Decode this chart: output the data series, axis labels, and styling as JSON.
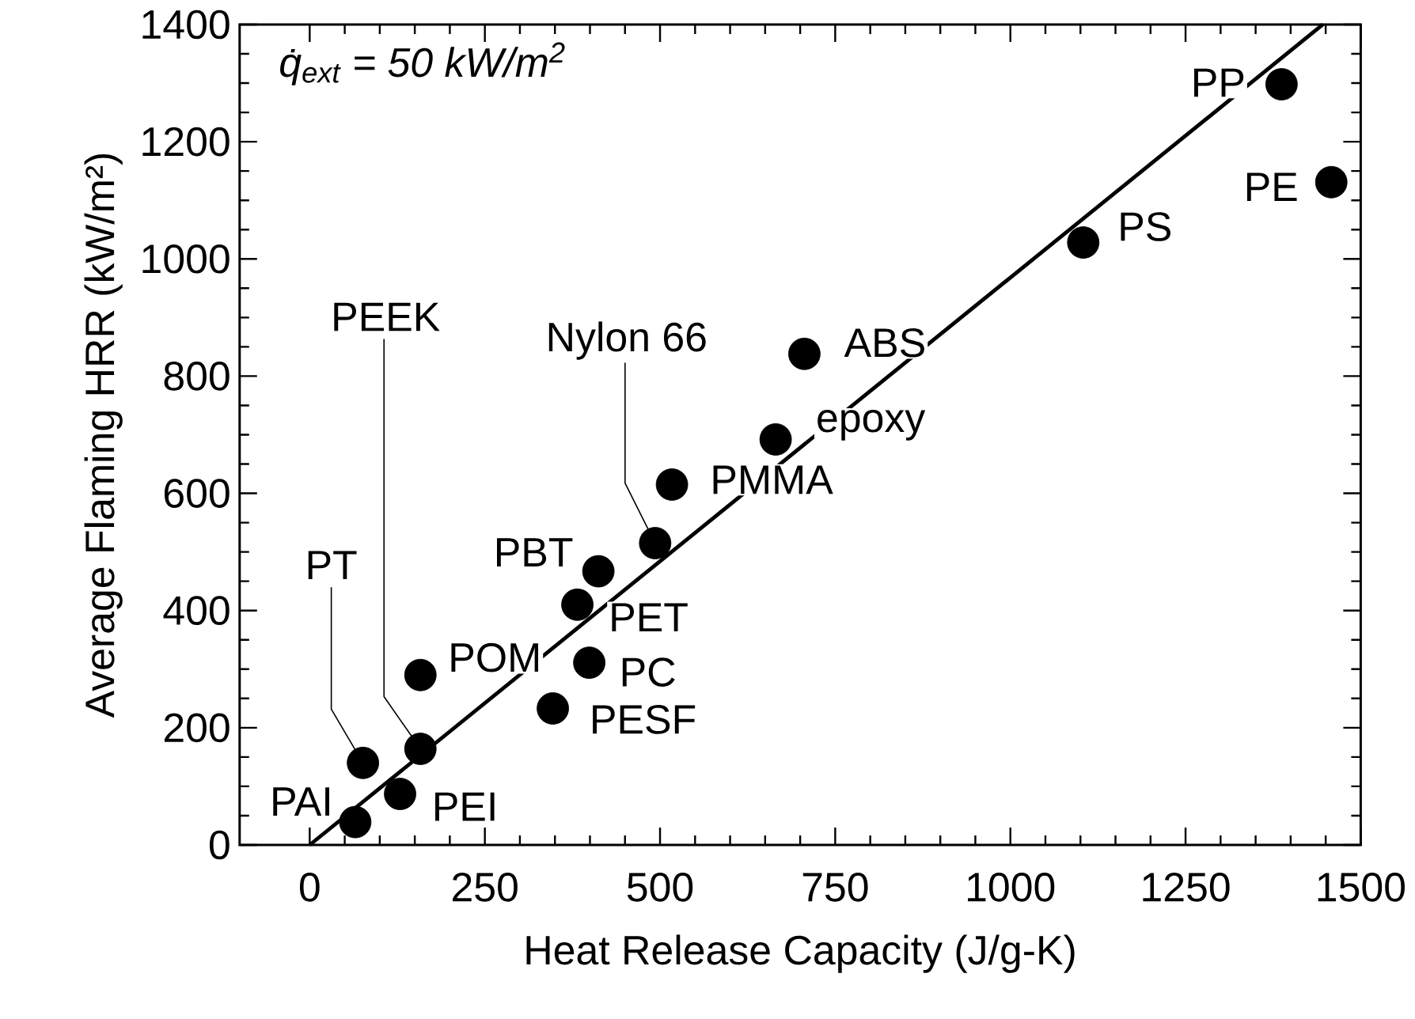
{
  "chart_data": {
    "type": "scatter",
    "xlabel": "Heat Release Capacity (J/g-K)",
    "ylabel": "Average Flaming HRR (kW/m²)",
    "xlim": [
      -100,
      1500
    ],
    "ylim": [
      0,
      1400
    ],
    "xticks": [
      0,
      250,
      500,
      750,
      1000,
      1250,
      1500
    ],
    "yticks": [
      0,
      200,
      400,
      600,
      800,
      1000,
      1200,
      1400
    ],
    "series": [
      {
        "type": "scatter",
        "marker": "circle",
        "color": "#000000",
        "x": [
          65,
          129,
          76,
          158,
          158,
          347,
          399,
          382,
          412,
          493,
          517,
          665,
          706,
          1104,
          1387,
          1458
        ],
        "values": [
          39,
          87,
          140,
          164,
          290,
          233,
          311,
          410,
          467,
          515,
          615,
          692,
          838,
          1028,
          1298,
          1131
        ]
      },
      {
        "type": "line",
        "marker": "none",
        "line_style": "solid",
        "color": "#000000",
        "x": [
          0,
          1446
        ],
        "values": [
          0,
          1400
        ]
      }
    ],
    "annotations": [
      "q̇$_{ext}$ = 50 kW/m$^{2}$",
      {
        "text": "PAI",
        "x": 65,
        "y": 39
      },
      {
        "text": "PEI",
        "x": 129,
        "y": 87
      },
      {
        "text": "PT",
        "x": 76,
        "y": 140
      },
      {
        "text": "PEEK",
        "x": 158,
        "y": 164
      },
      {
        "text": "POM",
        "x": 158,
        "y": 290
      },
      {
        "text": "PESF",
        "x": 347,
        "y": 233
      },
      {
        "text": "PC",
        "x": 399,
        "y": 311
      },
      {
        "text": "PET",
        "x": 382,
        "y": 410
      },
      {
        "text": "PBT",
        "x": 412,
        "y": 467
      },
      {
        "text": "Nylon 66",
        "x": 493,
        "y": 515
      },
      {
        "text": "PMMA",
        "x": 517,
        "y": 615
      },
      {
        "text": "epoxy",
        "x": 665,
        "y": 692
      },
      {
        "text": "ABS",
        "x": 706,
        "y": 838
      },
      {
        "text": "PS",
        "x": 1104,
        "y": 1028
      },
      {
        "text": "PP",
        "x": 1387,
        "y": 1298
      },
      {
        "text": "PE",
        "x": 1458,
        "y": 1131
      }
    ]
  }
}
